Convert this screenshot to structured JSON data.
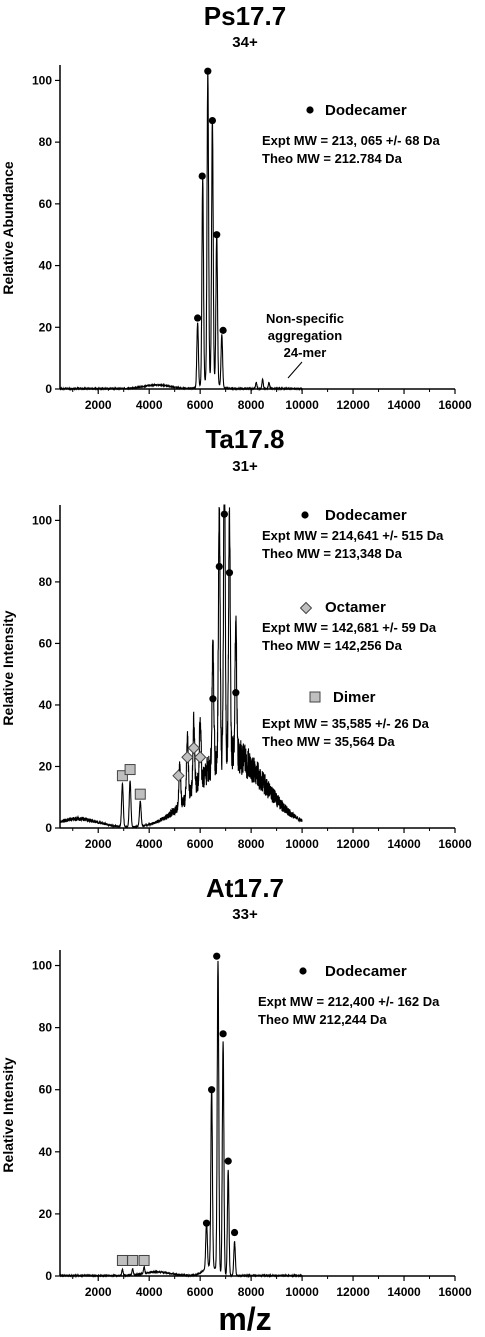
{
  "chart_data": [
    {
      "type": "line",
      "title": "Ps17.7",
      "subtitle": "34+",
      "ylabel": "Relative Abundance",
      "xlim": [
        500,
        16000
      ],
      "ylim": [
        0,
        105
      ],
      "xticks": [
        2000,
        4000,
        6000,
        8000,
        10000,
        12000,
        14000,
        16000
      ],
      "yticks": [
        0,
        20,
        40,
        60,
        80,
        100
      ],
      "peaks": [
        {
          "x": 5900,
          "y": 21
        },
        {
          "x": 6100,
          "y": 67
        },
        {
          "x": 6300,
          "y": 100
        },
        {
          "x": 6480,
          "y": 85
        },
        {
          "x": 6650,
          "y": 48
        },
        {
          "x": 6850,
          "y": 17
        },
        {
          "x": 8200,
          "y": 2
        },
        {
          "x": 8450,
          "y": 3
        },
        {
          "x": 8700,
          "y": 2
        }
      ],
      "markers": [
        {
          "shape": "circle",
          "x": 5900,
          "y": 23
        },
        {
          "shape": "circle",
          "x": 6080,
          "y": 69
        },
        {
          "shape": "circle",
          "x": 6300,
          "y": 103
        },
        {
          "shape": "circle",
          "x": 6480,
          "y": 87
        },
        {
          "shape": "circle",
          "x": 6650,
          "y": 50
        },
        {
          "shape": "circle",
          "x": 6900,
          "y": 19
        }
      ],
      "legend": [
        {
          "symbol": "circle",
          "name": "Dodecamer",
          "lines": [
            "Expt MW = 213, 065 +/- 68 Da",
            "Theo MW = 212.784 Da"
          ]
        }
      ],
      "annotations": [
        {
          "lines": [
            "Non-specific",
            "aggregation",
            "24-mer"
          ]
        }
      ]
    },
    {
      "type": "line",
      "title": "Ta17.8",
      "subtitle": "31+",
      "ylabel": "Relative Intensity",
      "xlim": [
        500,
        16000
      ],
      "ylim": [
        0,
        105
      ],
      "xticks": [
        2000,
        4000,
        6000,
        8000,
        10000,
        12000,
        14000,
        16000
      ],
      "yticks": [
        0,
        20,
        40,
        60,
        80,
        100
      ],
      "peaks": [
        {
          "x": 2950,
          "y": 14
        },
        {
          "x": 3250,
          "y": 15
        },
        {
          "x": 3650,
          "y": 8
        },
        {
          "x": 5200,
          "y": 14
        },
        {
          "x": 5500,
          "y": 19
        },
        {
          "x": 5750,
          "y": 22
        },
        {
          "x": 6000,
          "y": 19
        },
        {
          "x": 6500,
          "y": 40
        },
        {
          "x": 6750,
          "y": 82
        },
        {
          "x": 6950,
          "y": 100
        },
        {
          "x": 7150,
          "y": 80
        },
        {
          "x": 7400,
          "y": 42
        }
      ],
      "markers": [
        {
          "shape": "square",
          "x": 2950,
          "y": 17
        },
        {
          "shape": "square",
          "x": 3250,
          "y": 19
        },
        {
          "shape": "square",
          "x": 3650,
          "y": 11
        },
        {
          "shape": "diamond",
          "x": 5150,
          "y": 17
        },
        {
          "shape": "diamond",
          "x": 5500,
          "y": 23
        },
        {
          "shape": "diamond",
          "x": 5750,
          "y": 26
        },
        {
          "shape": "diamond",
          "x": 6000,
          "y": 23
        },
        {
          "shape": "circle",
          "x": 6500,
          "y": 42
        },
        {
          "shape": "circle",
          "x": 6750,
          "y": 85
        },
        {
          "shape": "circle",
          "x": 6950,
          "y": 102
        },
        {
          "shape": "circle",
          "x": 7150,
          "y": 83
        },
        {
          "shape": "circle",
          "x": 7400,
          "y": 44
        }
      ],
      "legend": [
        {
          "symbol": "circle",
          "name": "Dodecamer",
          "lines": [
            "Expt MW = 214,641 +/- 515 Da",
            "Theo MW = 213,348 Da"
          ]
        },
        {
          "symbol": "diamond",
          "name": "Octamer",
          "lines": [
            "Expt MW = 142,681 +/- 59 Da",
            "Theo MW = 142,256 Da"
          ]
        },
        {
          "symbol": "square",
          "name": "Dimer",
          "lines": [
            "Expt MW = 35,585 +/- 26 Da",
            "Theo MW = 35,564 Da"
          ]
        }
      ]
    },
    {
      "type": "line",
      "title": "At17.7",
      "subtitle": "33+",
      "ylabel": "Relative Intensity",
      "xlabel": "m/z",
      "xlim": [
        500,
        16000
      ],
      "ylim": [
        0,
        105
      ],
      "xticks": [
        2000,
        4000,
        6000,
        8000,
        10000,
        12000,
        14000,
        16000
      ],
      "yticks": [
        0,
        20,
        40,
        60,
        80,
        100
      ],
      "peaks": [
        {
          "x": 2950,
          "y": 2
        },
        {
          "x": 3350,
          "y": 2
        },
        {
          "x": 3800,
          "y": 2
        },
        {
          "x": 6250,
          "y": 15
        },
        {
          "x": 6450,
          "y": 58
        },
        {
          "x": 6700,
          "y": 100
        },
        {
          "x": 6900,
          "y": 75
        },
        {
          "x": 7100,
          "y": 34
        },
        {
          "x": 7350,
          "y": 11
        }
      ],
      "markers": [
        {
          "shape": "square",
          "x": 2950,
          "y": 5
        },
        {
          "shape": "square",
          "x": 3350,
          "y": 5
        },
        {
          "shape": "square",
          "x": 3800,
          "y": 5
        },
        {
          "shape": "circle",
          "x": 6250,
          "y": 17
        },
        {
          "shape": "circle",
          "x": 6450,
          "y": 60
        },
        {
          "shape": "circle",
          "x": 6650,
          "y": 103
        },
        {
          "shape": "circle",
          "x": 6900,
          "y": 78
        },
        {
          "shape": "circle",
          "x": 7100,
          "y": 37
        },
        {
          "shape": "circle",
          "x": 7350,
          "y": 14
        }
      ],
      "legend": [
        {
          "symbol": "circle",
          "name": "Dodecamer",
          "lines": [
            "Expt MW = 212,400 +/- 162 Da",
            "Theo MW 212,244 Da"
          ]
        }
      ]
    }
  ]
}
